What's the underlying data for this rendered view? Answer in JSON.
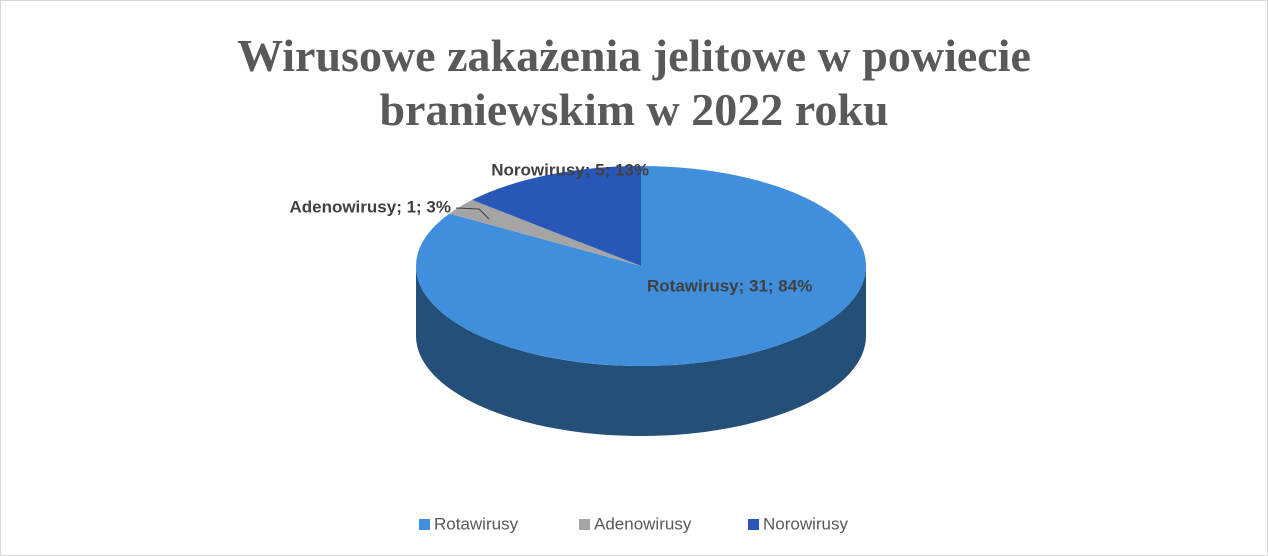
{
  "chart_data": {
    "type": "pie",
    "title": "Wirusowe zakażenia jelitowe w powiecie braniewskim w 2022 roku",
    "categories": [
      "Rotawirusy",
      "Adenowirusy",
      "Norowirusy"
    ],
    "series": [
      {
        "name": "Wirusowe zakażenia jelitowe",
        "colors": [
          "#3f8fdc",
          "#a5a5a5",
          "#2957b8"
        ],
        "values": [
          31,
          1,
          5
        ],
        "value_labels": [
          "Rotawirusy; 31; 84%",
          "Adenowirusy; 1; 3%",
          "Norowirusy; 5; 13%"
        ]
      }
    ],
    "legend": "bottom"
  }
}
